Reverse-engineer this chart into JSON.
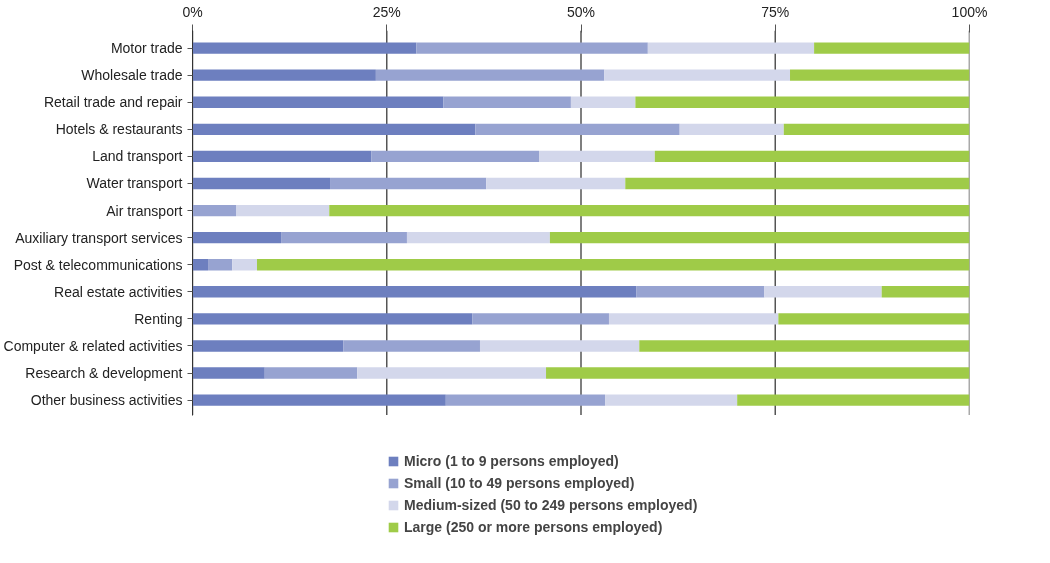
{
  "chart_data": {
    "type": "bar",
    "orientation": "horizontal",
    "stacked": true,
    "categories": [
      "Motor trade",
      "Wholesale trade",
      "Retail trade and repair",
      "Hotels & restaurants",
      "Land transport",
      "Water transport",
      "Air transport",
      "Auxiliary transport services",
      "Post & telecommunications",
      "Real estate activities",
      "Renting",
      "Computer & related activities",
      "Research & development",
      "Other business activities"
    ],
    "series": [
      {
        "name": "Micro (1 to 9 persons employed)",
        "color": "#6d7fbf",
        "values": [
          28.8,
          23.6,
          32.3,
          36.4,
          23.0,
          17.7,
          0,
          11.4,
          2.0,
          57.1,
          36.0,
          19.4,
          9.3,
          32.6
        ]
      },
      {
        "name": "Small (10 to 49 persons employed)",
        "color": "#97a3d1",
        "values": [
          29.8,
          29.4,
          16.4,
          26.3,
          21.6,
          20.1,
          5.6,
          16.2,
          3.1,
          16.5,
          17.6,
          17.6,
          11.9,
          20.5
        ]
      },
      {
        "name": "Medium-sized (50 to 249 persons employed)",
        "color": "#d3d7eb",
        "values": [
          21.4,
          23.9,
          8.3,
          13.4,
          14.9,
          17.9,
          12.0,
          18.4,
          3.2,
          15.1,
          21.8,
          20.5,
          24.3,
          17.0
        ]
      },
      {
        "name": "Large (250 or more persons employed)",
        "color": "#9fcb48",
        "values": [
          20.0,
          23.1,
          43.0,
          23.9,
          40.5,
          44.3,
          82.4,
          54.0,
          91.7,
          11.3,
          24.6,
          42.5,
          54.5,
          29.9
        ]
      }
    ],
    "xlim": [
      0,
      100
    ],
    "xticks": [
      {
        "value": 0,
        "label": "0%"
      },
      {
        "value": 25,
        "label": "25%"
      },
      {
        "value": 50,
        "label": "50%"
      },
      {
        "value": 75,
        "label": "75%"
      },
      {
        "value": 100,
        "label": "100%"
      }
    ],
    "grid": "x",
    "legend": "bottom"
  }
}
